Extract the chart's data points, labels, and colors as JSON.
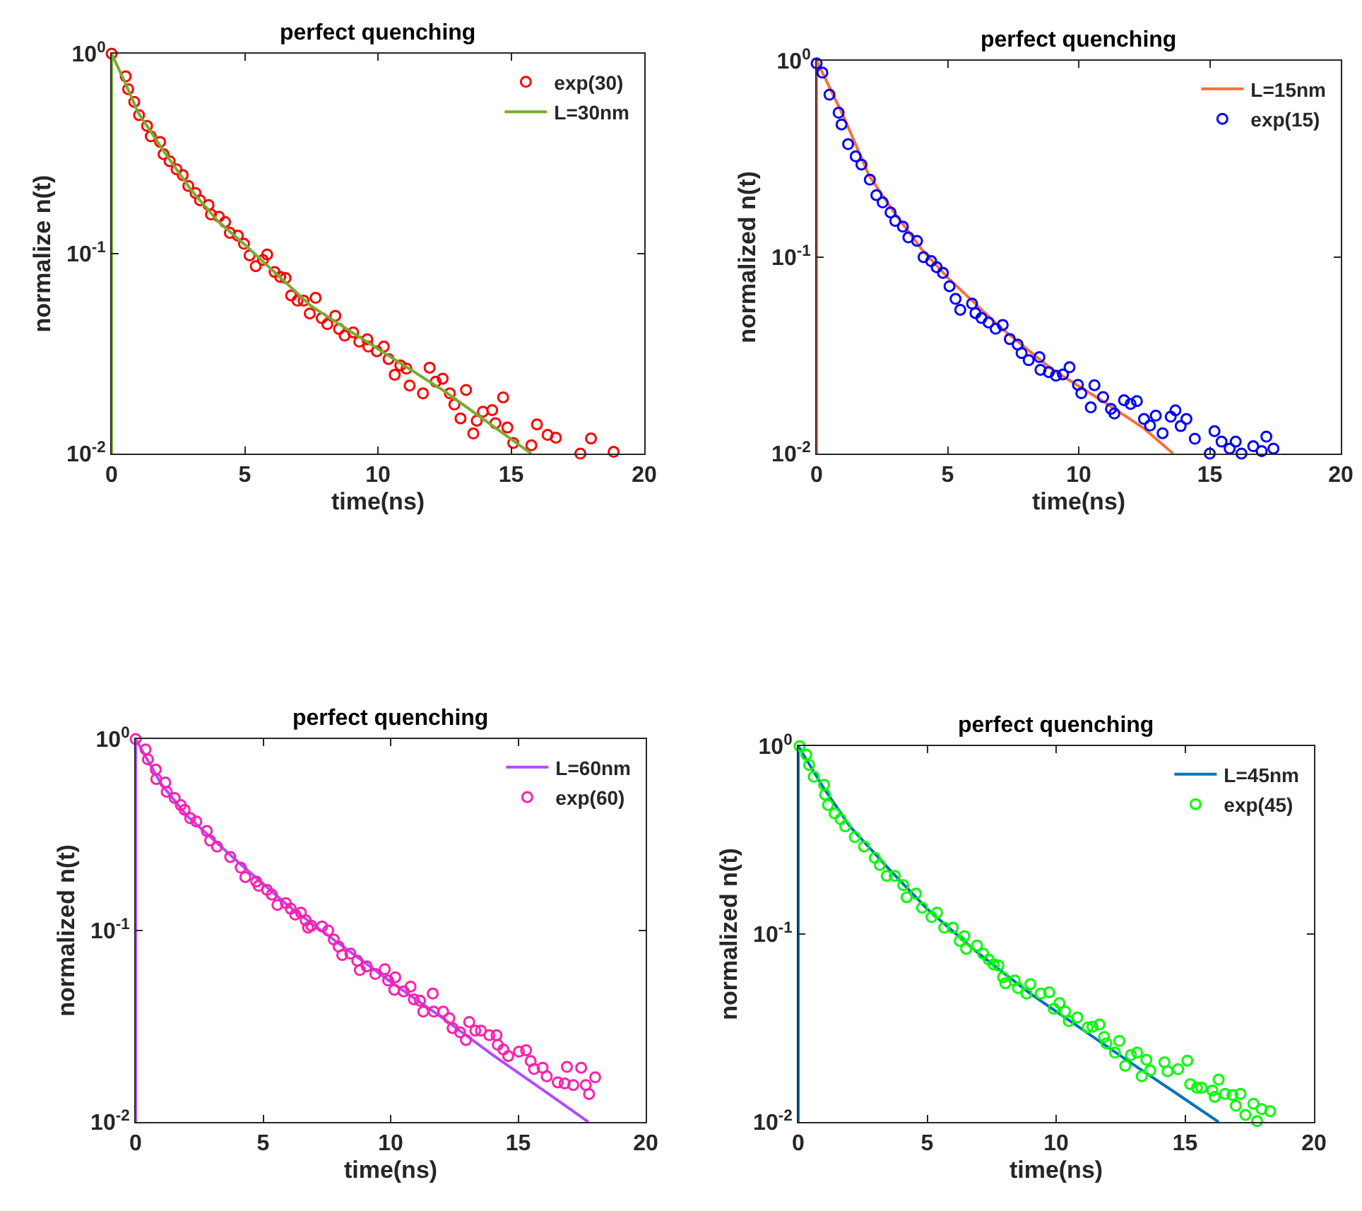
{
  "chart_data": [
    {
      "type": "line",
      "title": "perfect quenching",
      "xlabel": "time(ns)",
      "ylabel": "normalize n(t)",
      "log": "y",
      "legend": "top right",
      "grid": false,
      "xlim": [
        0,
        20
      ],
      "xticks": [
        0,
        5,
        10,
        15,
        20
      ],
      "ylim": [
        0.01,
        1
      ],
      "yticks": [
        {
          "value": 0.01,
          "label": "10$^{-2}$"
        },
        {
          "value": 0.1,
          "label": "10$^{-1}$"
        },
        {
          "value": 1,
          "label": "10$^{0}$"
        }
      ],
      "series": [
        {
          "name": "exp(30)",
          "type": "scatter",
          "marker": "circle",
          "color": "#ff0000",
          "x": [
            0,
            0.53,
            0.62,
            0.85,
            1.03,
            1.33,
            1.47,
            1.82,
            1.95,
            2.18,
            2.44,
            2.67,
            2.88,
            3.15,
            3.32,
            3.64,
            3.73,
            4.03,
            4.26,
            4.44,
            4.74,
            4.97,
            5.18,
            5.41,
            5.68,
            5.84,
            6.12,
            6.33,
            6.53,
            6.74,
            6.98,
            7.21,
            7.44,
            7.66,
            7.89,
            8.1,
            8.4,
            8.54,
            8.75,
            9.07,
            9.3,
            9.6,
            9.64,
            9.96,
            10.22,
            10.4,
            10.63,
            10.84,
            11.07,
            11.19,
            11.69,
            11.94,
            12.17,
            12.43,
            12.7,
            12.87,
            13.1,
            13.31,
            13.58,
            13.71,
            13.94,
            14.29,
            14.41,
            14.7,
            14.86,
            15.08,
            15.76,
            15.97,
            16.37,
            16.68,
            17.6,
            18.0,
            18.85
          ],
          "values": [
            1,
            0.77,
            0.665,
            0.574,
            0.493,
            0.435,
            0.386,
            0.362,
            0.314,
            0.29,
            0.264,
            0.247,
            0.218,
            0.201,
            0.185,
            0.175,
            0.157,
            0.153,
            0.144,
            0.127,
            0.123,
            0.112,
            0.098,
            0.0866,
            0.093,
            0.099,
            0.081,
            0.0764,
            0.0755,
            0.0618,
            0.0582,
            0.0582,
            0.0502,
            0.0601,
            0.0476,
            0.0444,
            0.0489,
            0.042,
            0.0389,
            0.0404,
            0.0363,
            0.0373,
            0.0343,
            0.0325,
            0.0343,
            0.0297,
            0.0248,
            0.0276,
            0.0266,
            0.0219,
            0.02,
            0.0269,
            0.0229,
            0.0237,
            0.02,
            0.0176,
            0.015,
            0.0208,
            0.0126,
            0.0146,
            0.0162,
            0.0165,
            0.0142,
            0.0191,
            0.0135,
            0.0113,
            0.011,
            0.014,
            0.0124,
            0.012,
            0.01,
            0.0119,
            0.0102
          ]
        },
        {
          "name": "L=30nm",
          "marker": "none",
          "color": "#77ac30",
          "x": [
            0,
            0,
            0.5,
            1,
            2,
            3,
            4,
            5,
            7.5,
            10,
            12.5,
            15.76
          ],
          "values": [
            0.01,
            1,
            0.72,
            0.507,
            0.319,
            0.207,
            0.145,
            0.111,
            0.0546,
            0.0334,
            0.0205,
            0.01
          ]
        }
      ]
    },
    {
      "type": "line",
      "title": "perfect quenching",
      "xlabel": "time(ns)",
      "ylabel": "normalized n(t)",
      "log": "y",
      "legend": "top right",
      "grid": false,
      "xlim": [
        0,
        20
      ],
      "xticks": [
        0,
        5,
        10,
        15,
        20
      ],
      "ylim": [
        0.01,
        1
      ],
      "yticks": [
        {
          "value": 0.01,
          "label": "10$^{-2}$"
        },
        {
          "value": 0.1,
          "label": "10$^{-1}$"
        },
        {
          "value": 1,
          "label": "10$^{0}$"
        }
      ],
      "series": [
        {
          "name": "L=15nm",
          "marker": "none",
          "color": "#ff6e3a",
          "x": [
            0,
            0,
            1,
            2,
            3,
            4,
            5,
            7,
            9,
            11,
            12.5,
            13.6
          ],
          "values": [
            0.01,
            1,
            0.53,
            0.26,
            0.166,
            0.11,
            0.0787,
            0.044,
            0.0267,
            0.0182,
            0.0134,
            0.01
          ]
        },
        {
          "name": "exp(15)",
          "type": "scatter",
          "marker": "circle",
          "color": "#0000ff",
          "x": [
            0,
            0.22,
            0.49,
            0.84,
            0.95,
            1.2,
            1.49,
            1.71,
            2.03,
            2.28,
            2.52,
            2.82,
            3.0,
            3.29,
            3.5,
            3.83,
            4.08,
            4.37,
            4.58,
            4.82,
            5.07,
            5.3,
            5.48,
            5.93,
            6.06,
            6.29,
            6.56,
            6.83,
            7.1,
            7.37,
            7.67,
            7.82,
            8.09,
            8.5,
            8.54,
            8.86,
            9.13,
            9.4,
            9.65,
            9.97,
            10.1,
            10.46,
            10.6,
            10.93,
            11.23,
            11.36,
            11.73,
            11.98,
            12.22,
            12.49,
            12.72,
            12.94,
            13.2,
            13.51,
            13.69,
            13.89,
            14.11,
            14.43,
            15.0,
            15.18,
            15.45,
            15.76,
            15.99,
            16.21,
            16.66,
            16.98,
            17.16,
            17.43
          ],
          "values": [
            0.97,
            0.87,
            0.672,
            0.544,
            0.474,
            0.376,
            0.326,
            0.296,
            0.248,
            0.207,
            0.19,
            0.169,
            0.153,
            0.143,
            0.126,
            0.121,
            0.1,
            0.0955,
            0.0888,
            0.0831,
            0.0711,
            0.0613,
            0.054,
            0.058,
            0.0519,
            0.049,
            0.0465,
            0.0432,
            0.0452,
            0.0383,
            0.0359,
            0.0325,
            0.0299,
            0.031,
            0.0267,
            0.026,
            0.0249,
            0.0253,
            0.0275,
            0.0224,
            0.0203,
            0.0172,
            0.0223,
            0.0194,
            0.0169,
            0.016,
            0.0187,
            0.0179,
            0.0185,
            0.015,
            0.0139,
            0.0156,
            0.0127,
            0.0154,
            0.0166,
            0.0138,
            0.015,
            0.0119,
            0.01,
            0.013,
            0.0115,
            0.0106,
            0.0115,
            0.01,
            0.0109,
            0.0103,
            0.0122,
            0.0106
          ]
        }
      ]
    },
    {
      "type": "line",
      "title": "perfect quenching",
      "xlabel": "time(ns)",
      "ylabel": "normalized n(t)",
      "log": "y",
      "legend": "top right",
      "grid": false,
      "xlim": [
        0,
        20
      ],
      "xticks": [
        0,
        5,
        10,
        15,
        20
      ],
      "ylim": [
        0.01,
        1
      ],
      "yticks": [
        {
          "value": 0.01,
          "label": "10$^{-2}$"
        },
        {
          "value": 0.1,
          "label": "10$^{-1}$"
        },
        {
          "value": 1,
          "label": "10$^{0}$"
        }
      ],
      "series": [
        {
          "name": "L=60nm",
          "marker": "none",
          "color": "#b04cff",
          "x": [
            0,
            0,
            1,
            2,
            4,
            6,
            8,
            10,
            12,
            14,
            16,
            17.75
          ],
          "values": [
            0.01,
            1,
            0.583,
            0.399,
            0.229,
            0.134,
            0.0849,
            0.054,
            0.0352,
            0.0224,
            0.0146,
            0.01
          ]
        },
        {
          "name": "exp(60)",
          "type": "scatter",
          "marker": "circle",
          "color": "#ff1fae",
          "x": [
            0,
            0.39,
            0.48,
            0.79,
            0.81,
            1.16,
            1.22,
            1.53,
            1.77,
            1.92,
            2.14,
            2.38,
            2.79,
            2.92,
            3.19,
            3.71,
            4.12,
            4.3,
            4.73,
            4.82,
            5.15,
            5.34,
            5.56,
            5.89,
            6.08,
            6.26,
            6.48,
            6.67,
            6.76,
            6.89,
            7.31,
            7.55,
            7.77,
            7.96,
            8.1,
            8.42,
            8.69,
            8.79,
            9.06,
            9.4,
            9.77,
            9.9,
            10.18,
            10.14,
            10.51,
            10.78,
            10.91,
            11.15,
            11.28,
            11.65,
            11.69,
            12.06,
            12.3,
            12.43,
            12.72,
            12.95,
            13.08,
            13.32,
            13.54,
            13.87,
            14.15,
            14.2,
            14.42,
            14.61,
            15.03,
            15.31,
            15.49,
            15.62,
            15.96,
            16.12,
            16.55,
            16.82,
            16.91,
            17.16,
            17.47,
            17.65,
            17.78,
            18.02
          ],
          "values": [
            1,
            0.883,
            0.784,
            0.692,
            0.618,
            0.593,
            0.53,
            0.492,
            0.452,
            0.427,
            0.386,
            0.371,
            0.331,
            0.295,
            0.274,
            0.242,
            0.213,
            0.19,
            0.18,
            0.171,
            0.163,
            0.154,
            0.136,
            0.139,
            0.13,
            0.121,
            0.124,
            0.113,
            0.1035,
            0.106,
            0.105,
            0.1,
            0.0898,
            0.0824,
            0.0745,
            0.0757,
            0.0695,
            0.0621,
            0.065,
            0.0593,
            0.0628,
            0.0548,
            0.057,
            0.049,
            0.0481,
            0.0509,
            0.0437,
            0.043,
            0.0377,
            0.0468,
            0.0377,
            0.0377,
            0.0348,
            0.0309,
            0.0294,
            0.0268,
            0.0333,
            0.03,
            0.03,
            0.0284,
            0.0284,
            0.0253,
            0.0239,
            0.0221,
            0.0233,
            0.0237,
            0.0208,
            0.0189,
            0.0192,
            0.0173,
            0.0161,
            0.0159,
            0.0194,
            0.0156,
            0.0192,
            0.0156,
            0.014,
            0.0171
          ]
        }
      ]
    },
    {
      "type": "line",
      "title": "perfect quenching",
      "xlabel": "time(ns)",
      "ylabel": "normalized n(t)",
      "log": "y",
      "legend": "top right",
      "grid": false,
      "xlim": [
        0,
        20
      ],
      "xticks": [
        0,
        5,
        10,
        15,
        20
      ],
      "ylim": [
        0.01,
        1
      ],
      "yticks": [
        {
          "value": 0.01,
          "label": "10$^{-2}$"
        },
        {
          "value": 0.1,
          "label": "10$^{-1}$"
        },
        {
          "value": 1,
          "label": "10$^{0}$"
        }
      ],
      "series": [
        {
          "name": "L=45nm",
          "marker": "none",
          "color": "#0072bd",
          "x": [
            0,
            0,
            1,
            2,
            3.5,
            5,
            7,
            9,
            11,
            13,
            14.5,
            16.3
          ],
          "values": [
            0.01,
            1,
            0.594,
            0.374,
            0.223,
            0.136,
            0.0787,
            0.0482,
            0.0312,
            0.0202,
            0.0147,
            0.01
          ]
        },
        {
          "name": "exp(45)",
          "type": "scatter",
          "marker": "circle",
          "color": "#00ff00",
          "x": [
            0.05,
            0.31,
            0.42,
            0.6,
            1.0,
            1.04,
            1.15,
            1.41,
            1.64,
            1.82,
            2.19,
            2.55,
            2.97,
            3.16,
            3.43,
            3.74,
            4.07,
            4.2,
            4.56,
            4.8,
            5.17,
            5.38,
            5.66,
            5.99,
            6.26,
            6.44,
            6.51,
            6.93,
            7.17,
            7.39,
            7.57,
            7.76,
            7.94,
            8.03,
            8.39,
            8.52,
            8.85,
            9.0,
            9.4,
            9.73,
            9.91,
            10.13,
            10.35,
            10.49,
            10.82,
            11.22,
            11.41,
            11.68,
            11.86,
            11.95,
            12.28,
            12.45,
            12.68,
            12.9,
            13.14,
            13.32,
            13.5,
            13.65,
            14.2,
            14.32,
            14.73,
            15.09,
            15.2,
            15.46,
            15.64,
            16.06,
            16.3,
            16.15,
            16.55,
            16.84,
            17.15,
            16.97,
            17.65,
            17.34,
            17.79,
            17.97,
            18.3
          ],
          "values": [
            1,
            0.901,
            0.794,
            0.687,
            0.622,
            0.552,
            0.486,
            0.438,
            0.408,
            0.374,
            0.328,
            0.292,
            0.254,
            0.233,
            0.204,
            0.204,
            0.182,
            0.157,
            0.164,
            0.138,
            0.123,
            0.13,
            0.108,
            0.108,
            0.092,
            0.0975,
            0.0834,
            0.0869,
            0.0787,
            0.073,
            0.0689,
            0.0681,
            0.0589,
            0.0547,
            0.0566,
            0.0516,
            0.0482,
            0.0541,
            0.0482,
            0.049,
            0.04,
            0.0429,
            0.0387,
            0.0344,
            0.036,
            0.0318,
            0.0321,
            0.033,
            0.0283,
            0.0262,
            0.0234,
            0.027,
            0.0199,
            0.0227,
            0.0234,
            0.0175,
            0.0214,
            0.0188,
            0.0208,
            0.0186,
            0.0191,
            0.0212,
            0.0159,
            0.0152,
            0.0152,
            0.0147,
            0.0168,
            0.0136,
            0.0141,
            0.0139,
            0.0141,
            0.0122,
            0.0125,
            0.0109,
            0.0101,
            0.0117,
            0.0114
          ]
        }
      ]
    }
  ]
}
